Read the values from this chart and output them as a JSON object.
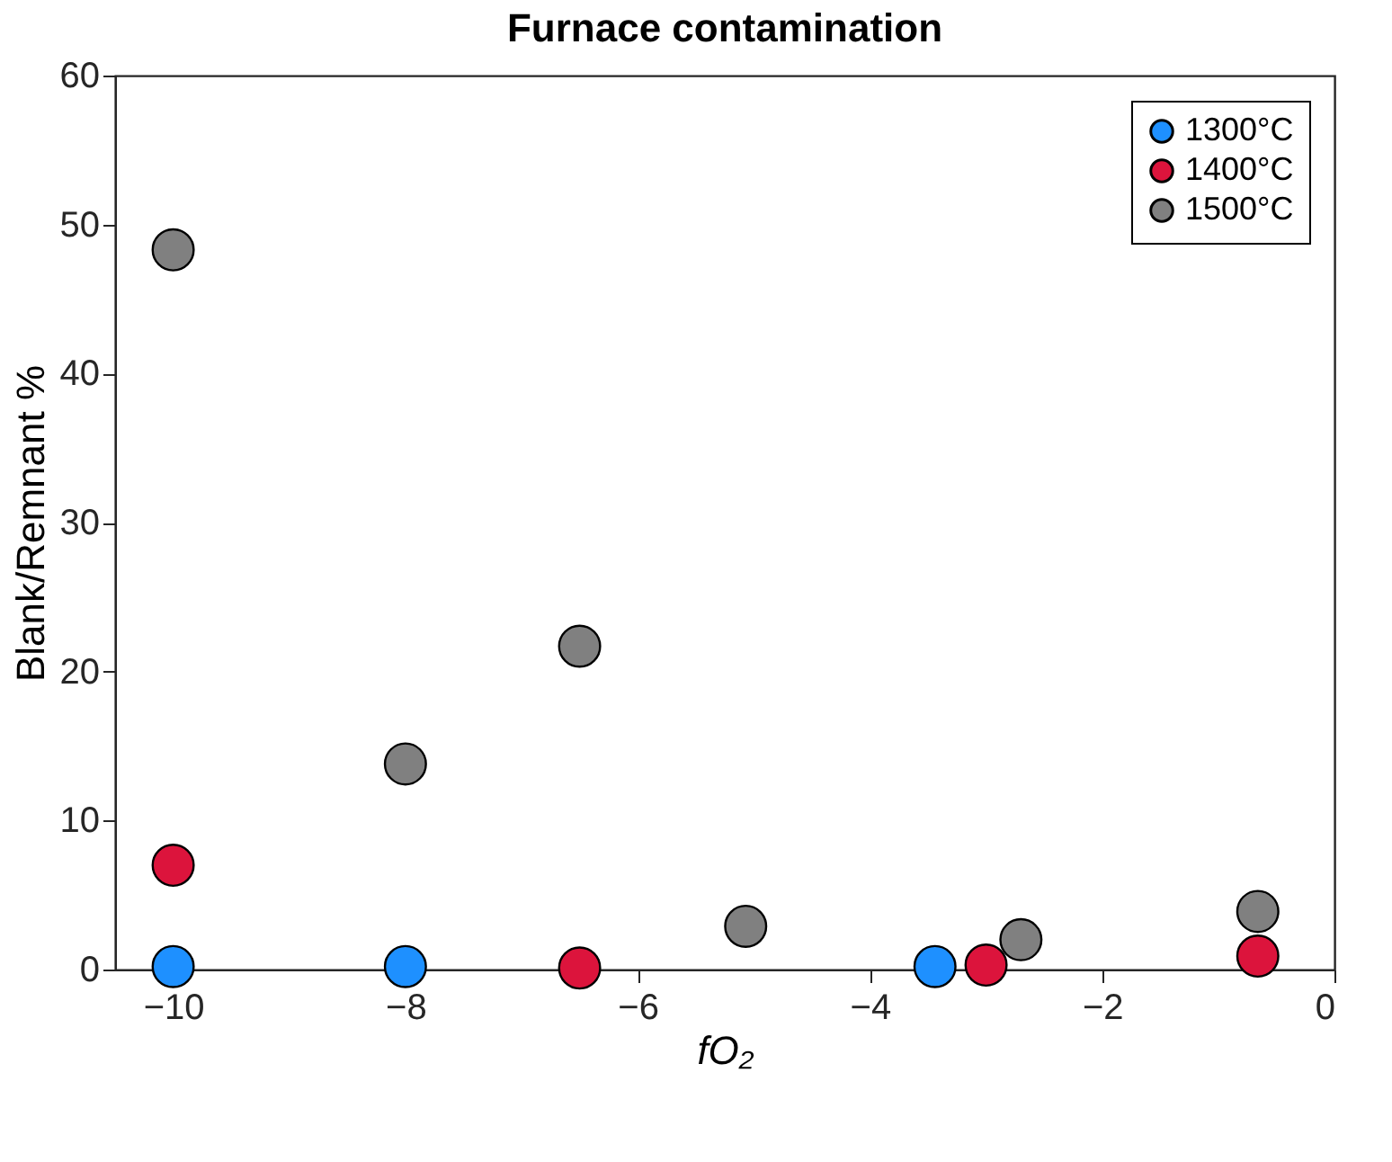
{
  "chart_data": {
    "type": "scatter",
    "title": "Furnace contamination",
    "xlabel": "fO₂",
    "ylabel": "Blank/Remnant %",
    "xlim": [
      -10.5,
      0
    ],
    "xticks": [
      -10,
      -8,
      -6,
      -4,
      -2,
      0
    ],
    "ylim": [
      0,
      60
    ],
    "yticks": [
      0,
      10,
      20,
      30,
      40,
      50,
      60
    ],
    "grid": false,
    "legend": "top right",
    "marker": "circle",
    "series": [
      {
        "name": "1300°C",
        "color": "#1e90ff",
        "x": [
          -10,
          -8,
          -3.44
        ],
        "values": [
          0.2,
          0.2,
          0.2
        ]
      },
      {
        "name": "1400°C",
        "color": "#dc143c",
        "x": [
          -10,
          -6.5,
          -3.0,
          -0.66
        ],
        "values": [
          7.0,
          0.1,
          0.3,
          0.9
        ]
      },
      {
        "name": "1500°C",
        "color": "#808080",
        "x": [
          -10,
          -8,
          -6.5,
          -5.07,
          -2.7,
          -0.66
        ],
        "values": [
          48.3,
          13.8,
          21.7,
          2.9,
          2.0,
          3.9
        ]
      }
    ]
  }
}
